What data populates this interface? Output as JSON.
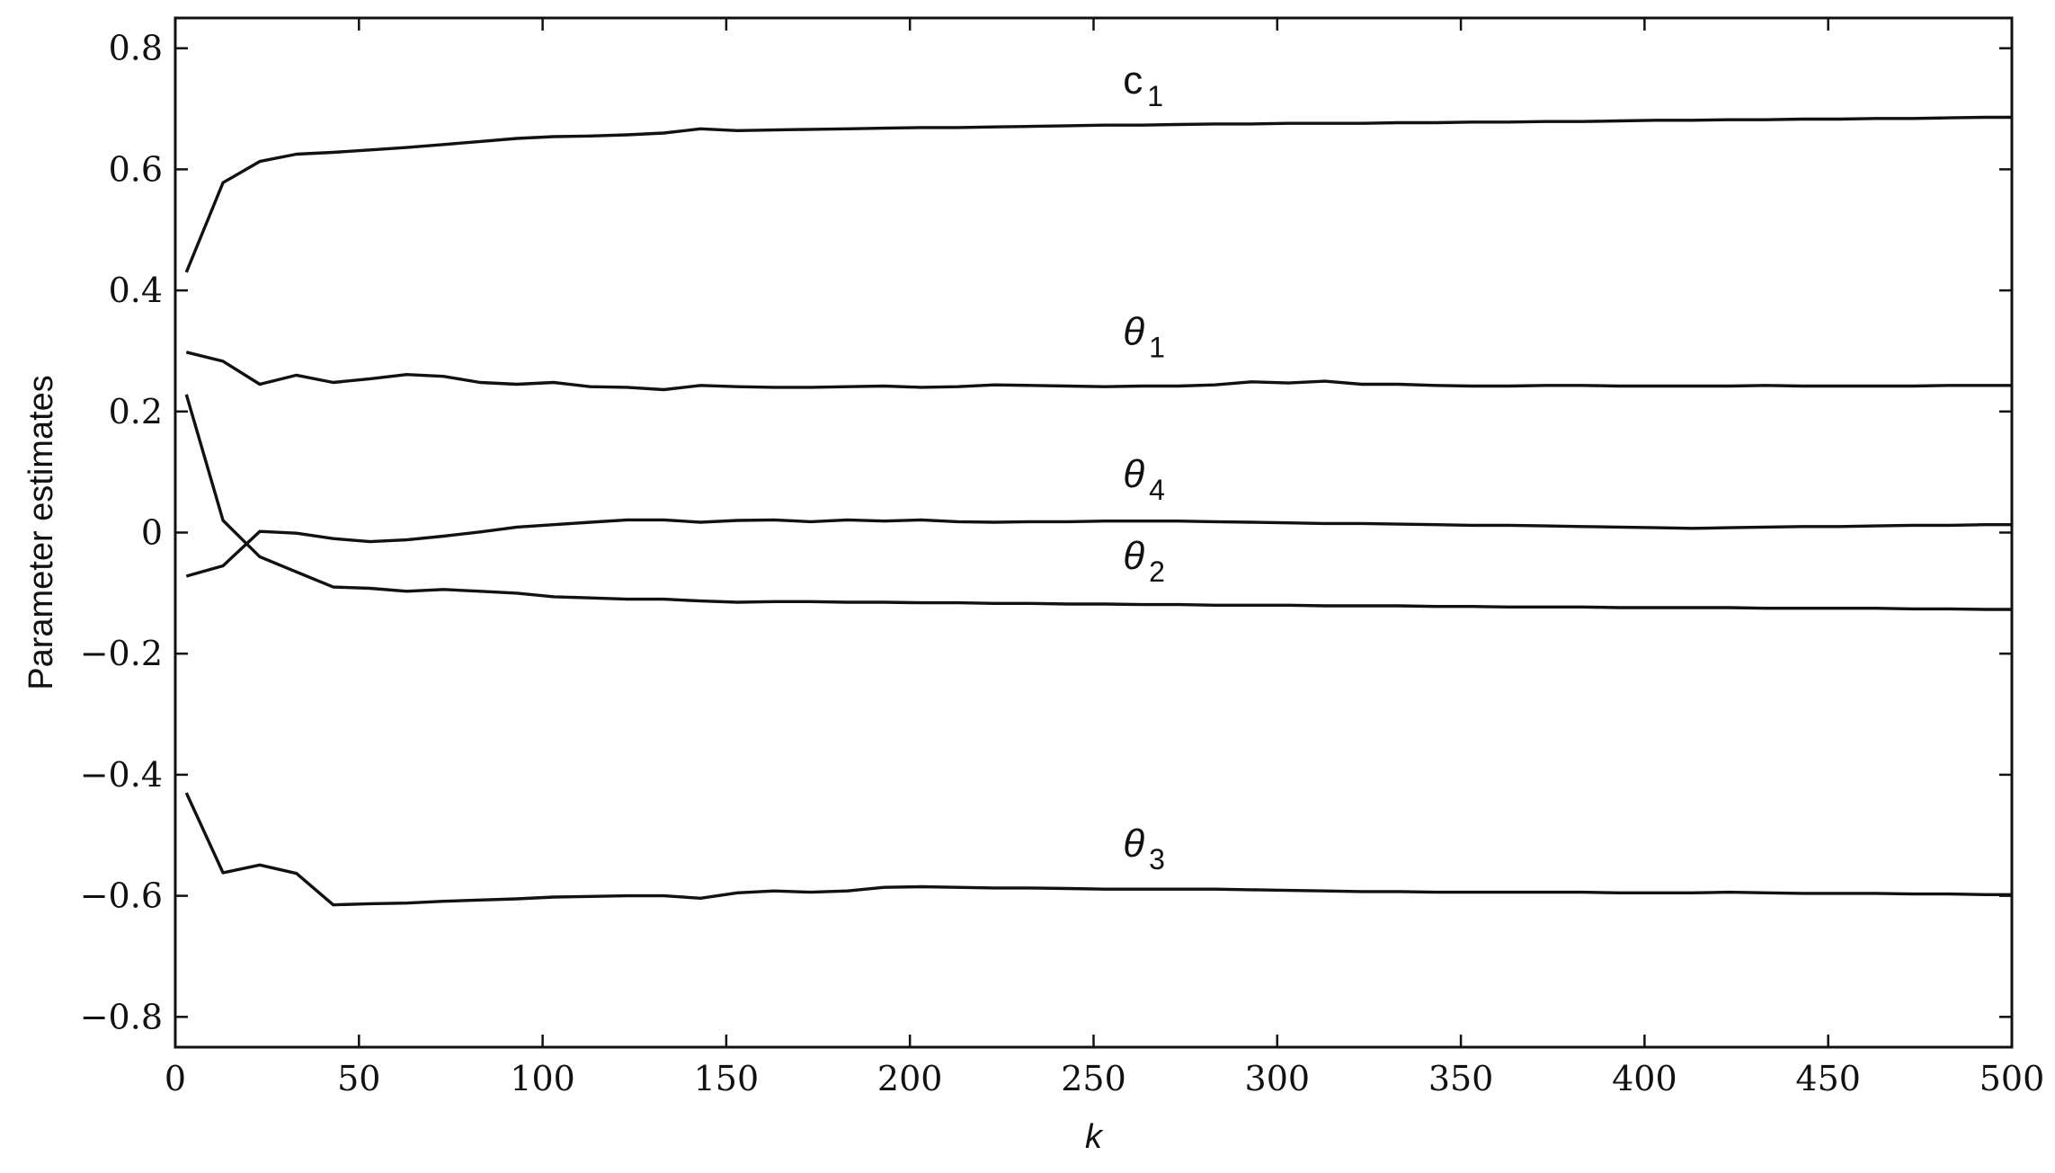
{
  "chart_data": {
    "type": "line",
    "xlabel": "k",
    "ylabel": "Parameter estimates",
    "xlim": [
      0,
      500
    ],
    "ylim": [
      -0.85,
      0.85
    ],
    "xticks": [
      0,
      50,
      100,
      150,
      200,
      250,
      300,
      350,
      400,
      450,
      500
    ],
    "xtick_labels": [
      "0",
      "50",
      "100",
      "150",
      "200",
      "250",
      "300",
      "350",
      "400",
      "450",
      "500"
    ],
    "yticks": [
      0.8,
      0.6,
      0.4,
      0.2,
      0,
      -0.2,
      -0.4,
      -0.6,
      -0.8
    ],
    "ytick_labels": [
      "0.8",
      "0.6",
      "0.4",
      "0.2",
      "0",
      "−0.2",
      "−0.4",
      "−0.6",
      "−0.8"
    ],
    "grid": false,
    "legend": "none",
    "x": [
      3,
      13,
      23,
      33,
      43,
      53,
      63,
      73,
      83,
      93,
      103,
      113,
      123,
      133,
      143,
      153,
      163,
      173,
      183,
      193,
      203,
      213,
      223,
      233,
      243,
      253,
      263,
      273,
      283,
      293,
      303,
      313,
      323,
      333,
      343,
      353,
      363,
      373,
      383,
      393,
      403,
      413,
      423,
      433,
      443,
      453,
      463,
      473,
      483,
      493,
      500
    ],
    "series": [
      {
        "name": "c",
        "subscript": "1",
        "label_at": [
          258,
          0.725
        ],
        "values": [
          0.43,
          0.578,
          0.613,
          0.625,
          0.628,
          0.632,
          0.636,
          0.641,
          0.646,
          0.651,
          0.654,
          0.655,
          0.657,
          0.66,
          0.667,
          0.664,
          0.665,
          0.666,
          0.667,
          0.668,
          0.669,
          0.669,
          0.67,
          0.671,
          0.672,
          0.673,
          0.673,
          0.674,
          0.675,
          0.675,
          0.676,
          0.676,
          0.676,
          0.677,
          0.677,
          0.678,
          0.678,
          0.679,
          0.679,
          0.68,
          0.681,
          0.681,
          0.682,
          0.682,
          0.683,
          0.683,
          0.684,
          0.684,
          0.685,
          0.686,
          0.686
        ]
      },
      {
        "name": "θ",
        "subscript": "1",
        "label_at": [
          258,
          0.31
        ],
        "values": [
          0.298,
          0.283,
          0.245,
          0.26,
          0.248,
          0.254,
          0.261,
          0.258,
          0.248,
          0.245,
          0.248,
          0.241,
          0.24,
          0.236,
          0.243,
          0.241,
          0.24,
          0.24,
          0.241,
          0.242,
          0.24,
          0.241,
          0.244,
          0.243,
          0.242,
          0.241,
          0.242,
          0.242,
          0.244,
          0.249,
          0.247,
          0.25,
          0.245,
          0.245,
          0.243,
          0.242,
          0.242,
          0.243,
          0.243,
          0.242,
          0.242,
          0.242,
          0.242,
          0.243,
          0.242,
          0.242,
          0.242,
          0.242,
          0.243,
          0.243,
          0.243
        ]
      },
      {
        "name": "θ",
        "subscript": "4",
        "label_at": [
          258,
          0.075
        ],
        "values": [
          -0.072,
          -0.055,
          0.002,
          -0.001,
          -0.01,
          -0.015,
          -0.012,
          -0.006,
          0.001,
          0.009,
          0.013,
          0.017,
          0.021,
          0.021,
          0.017,
          0.02,
          0.021,
          0.018,
          0.021,
          0.019,
          0.021,
          0.018,
          0.017,
          0.018,
          0.018,
          0.019,
          0.019,
          0.019,
          0.018,
          0.017,
          0.016,
          0.015,
          0.015,
          0.014,
          0.013,
          0.012,
          0.012,
          0.011,
          0.01,
          0.009,
          0.008,
          0.007,
          0.008,
          0.009,
          0.01,
          0.01,
          0.011,
          0.012,
          0.012,
          0.013,
          0.013
        ]
      },
      {
        "name": "θ",
        "subscript": "2",
        "label_at": [
          258,
          -0.06
        ],
        "values": [
          0.228,
          0.02,
          -0.04,
          -0.065,
          -0.09,
          -0.092,
          -0.097,
          -0.094,
          -0.097,
          -0.1,
          -0.106,
          -0.108,
          -0.11,
          -0.11,
          -0.113,
          -0.115,
          -0.114,
          -0.114,
          -0.115,
          -0.115,
          -0.116,
          -0.116,
          -0.117,
          -0.117,
          -0.118,
          -0.118,
          -0.119,
          -0.119,
          -0.12,
          -0.12,
          -0.12,
          -0.121,
          -0.121,
          -0.121,
          -0.122,
          -0.122,
          -0.123,
          -0.123,
          -0.123,
          -0.124,
          -0.124,
          -0.124,
          -0.124,
          -0.125,
          -0.125,
          -0.125,
          -0.125,
          -0.126,
          -0.126,
          -0.127,
          -0.127
        ]
      },
      {
        "name": "θ",
        "subscript": "3",
        "label_at": [
          258,
          -0.535
        ],
        "values": [
          -0.43,
          -0.562,
          -0.549,
          -0.563,
          -0.615,
          -0.613,
          -0.612,
          -0.609,
          -0.607,
          -0.605,
          -0.602,
          -0.601,
          -0.6,
          -0.6,
          -0.604,
          -0.595,
          -0.592,
          -0.594,
          -0.592,
          -0.586,
          -0.585,
          -0.586,
          -0.587,
          -0.587,
          -0.588,
          -0.589,
          -0.589,
          -0.589,
          -0.589,
          -0.59,
          -0.591,
          -0.592,
          -0.593,
          -0.593,
          -0.594,
          -0.594,
          -0.594,
          -0.594,
          -0.594,
          -0.595,
          -0.595,
          -0.595,
          -0.594,
          -0.595,
          -0.596,
          -0.596,
          -0.596,
          -0.597,
          -0.597,
          -0.598,
          -0.598
        ]
      }
    ]
  }
}
